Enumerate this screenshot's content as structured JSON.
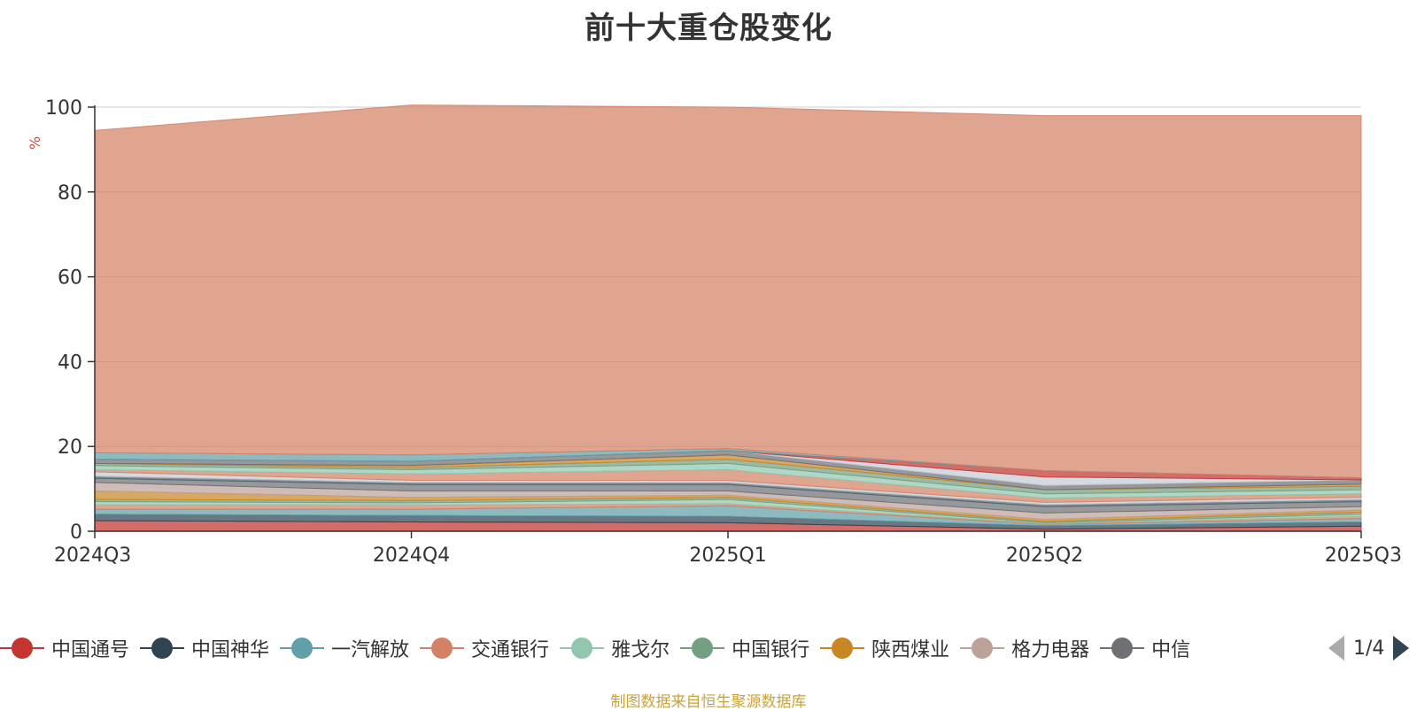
{
  "title": "前十大重仓股变化",
  "source_note": "制图数据来自恒生聚源数据库",
  "pager": {
    "text": "1/4"
  },
  "chart_data": {
    "type": "area",
    "stacked": true,
    "categories": [
      "2024Q3",
      "2024Q4",
      "2025Q1",
      "2025Q2",
      "2025Q3"
    ],
    "ylabel": "%",
    "ylim": [
      0,
      100
    ],
    "yticks": [
      0,
      20,
      40,
      60,
      80,
      100
    ],
    "grid": true,
    "legend_position": "bottom",
    "series": [
      {
        "name": "中国通号",
        "color": "#c23531",
        "values": [
          2.5,
          2.2,
          2.0,
          0.5,
          1.2
        ]
      },
      {
        "name": "中国神华",
        "color": "#2f4554",
        "values": [
          1.5,
          1.5,
          1.5,
          0.8,
          1.0
        ]
      },
      {
        "name": "一汽解放",
        "color": "#61a0a8",
        "values": [
          1.2,
          1.5,
          2.5,
          0.3,
          0.8
        ]
      },
      {
        "name": "交通银行",
        "color": "#d48265",
        "values": [
          1.0,
          1.0,
          0.5,
          0.2,
          0.5
        ]
      },
      {
        "name": "雅戈尔",
        "color": "#91c7ae",
        "values": [
          0.8,
          0.5,
          1.0,
          0.2,
          0.5
        ]
      },
      {
        "name": "中国银行",
        "color": "#749f83",
        "values": [
          0.5,
          0.5,
          0.5,
          0.3,
          0.5
        ]
      },
      {
        "name": "陕西煤业",
        "color": "#ca8622",
        "values": [
          2.0,
          0.8,
          0.5,
          0.5,
          0.5
        ]
      },
      {
        "name": "格力电器",
        "color": "#bda29a",
        "values": [
          2.0,
          1.5,
          1.0,
          1.5,
          0.8
        ]
      },
      {
        "name": "",
        "color": "#6e7074",
        "values": [
          1.0,
          1.5,
          1.5,
          1.5,
          1.2
        ]
      },
      {
        "name": "",
        "color": "#546570",
        "values": [
          0.5,
          0.5,
          0.5,
          0.5,
          0.5
        ]
      },
      {
        "name": "",
        "color": "#c4ccd3",
        "values": [
          1.0,
          0.5,
          0.5,
          0.5,
          0.5
        ]
      },
      {
        "name": "",
        "color": "#d48265",
        "values": [
          0.5,
          1.5,
          2.5,
          1.0,
          0.8
        ]
      },
      {
        "name": "",
        "color": "#91c7ae",
        "values": [
          1.0,
          1.0,
          1.5,
          1.0,
          1.0
        ]
      },
      {
        "name": "",
        "color": "#749f83",
        "values": [
          0.5,
          0.5,
          1.0,
          1.0,
          0.8
        ]
      },
      {
        "name": "",
        "color": "#ca8622",
        "values": [
          0.0,
          0.5,
          1.0,
          0.0,
          0.5
        ]
      },
      {
        "name": "",
        "color": "#6e7074",
        "values": [
          1.0,
          1.0,
          1.0,
          1.0,
          1.0
        ]
      },
      {
        "name": "",
        "color": "#c4ccd3",
        "values": [
          0.0,
          0.0,
          0.0,
          2.0,
          0.0
        ]
      },
      {
        "name": "",
        "color": "#c23531",
        "values": [
          0.0,
          0.0,
          0.0,
          1.5,
          0.5
        ]
      },
      {
        "name": "",
        "color": "#61a0a8",
        "values": [
          1.5,
          1.5,
          0.5,
          0.0,
          0.0
        ]
      },
      {
        "name": "",
        "color": "#d48265",
        "values": [
          76.0,
          82.5,
          80.5,
          83.7,
          85.4
        ]
      }
    ]
  }
}
